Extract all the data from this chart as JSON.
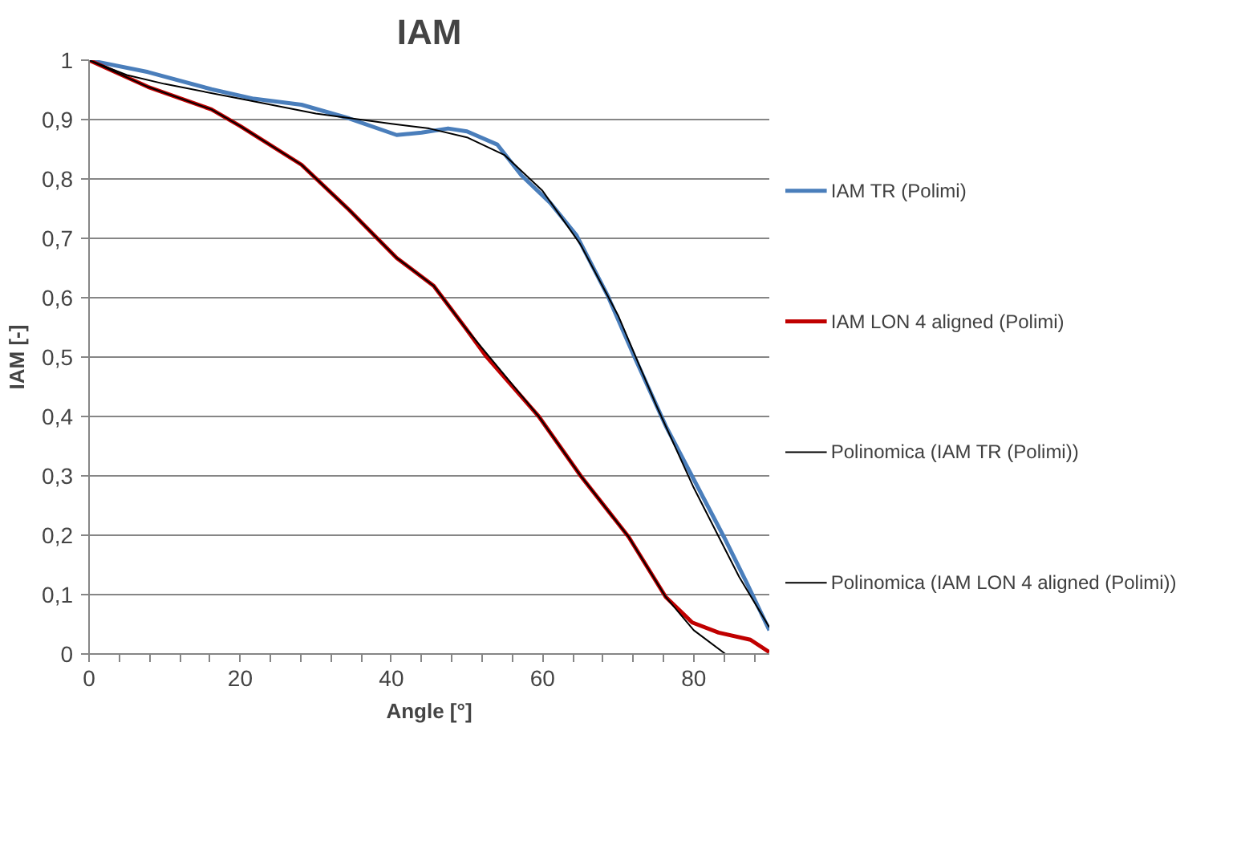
{
  "chart_data": {
    "type": "line",
    "title": "IAM",
    "xlabel": "Angle [°]",
    "ylabel": "IAM [-]",
    "xlim": [
      0,
      90
    ],
    "xticks": [
      0,
      20,
      40,
      60,
      80
    ],
    "ylim": [
      0,
      1
    ],
    "yticks": [
      0,
      {
        "value": 0.1,
        "label": "0,1"
      },
      {
        "value": 0.2,
        "label": "0,2"
      },
      {
        "value": 0.3,
        "label": "0,3"
      },
      {
        "value": 0.4,
        "label": "0,4"
      },
      {
        "value": 0.5,
        "label": "0,5"
      },
      {
        "value": 0.6,
        "label": "0,6"
      },
      {
        "value": 0.7,
        "label": "0,7"
      },
      {
        "value": 0.8,
        "label": "0,8"
      },
      {
        "value": 0.9,
        "label": "0,9"
      },
      1
    ],
    "grid": "y",
    "legend": "right",
    "marker": "none",
    "line_style": "solid",
    "series": [
      {
        "name": "IAM TR (Polimi)",
        "color": "#4a7ebb",
        "x": [
          0,
          7.8,
          16.2,
          21.8,
          28.1,
          34.4,
          40.7,
          44,
          47.5,
          50,
          54,
          57.2,
          61,
          64.5,
          68.6,
          72.1,
          76.3,
          79.8,
          84,
          87,
          90
        ],
        "values": [
          1,
          0.98,
          0.951,
          0.935,
          0.925,
          0.902,
          0.874,
          0.878,
          0.885,
          0.88,
          0.858,
          0.806,
          0.76,
          0.705,
          0.604,
          0.502,
          0.384,
          0.299,
          0.197,
          0.12,
          0.04
        ]
      },
      {
        "name": "IAM LON 4 aligned (Polimi)",
        "color": "#c00000",
        "x": [
          0,
          7.8,
          16.2,
          20,
          28.1,
          34.4,
          40.7,
          45.6,
          49.8,
          52.5,
          59.5,
          65.1,
          71.4,
          76.3,
          79.8,
          83.3,
          87.5,
          90
        ],
        "values": [
          1,
          0.955,
          0.917,
          0.889,
          0.824,
          0.748,
          0.667,
          0.62,
          0.549,
          0.502,
          0.4,
          0.299,
          0.197,
          0.096,
          0.053,
          0.036,
          0.024,
          0.003
        ]
      },
      {
        "name": "Polinomica (IAM TR (Polimi))",
        "color": "#000000",
        "x": [
          0,
          5,
          10,
          20,
          30,
          40,
          45,
          50,
          55,
          60,
          65,
          70,
          75,
          80,
          86,
          90
        ],
        "values": [
          1,
          0.975,
          0.96,
          0.935,
          0.91,
          0.893,
          0.885,
          0.87,
          0.84,
          0.78,
          0.69,
          0.57,
          0.42,
          0.28,
          0.13,
          0.045
        ]
      },
      {
        "name": "Polinomica (IAM LON 4 aligned (Polimi))",
        "color": "#000000",
        "x": [
          0,
          7.8,
          16.2,
          20,
          28.1,
          34.4,
          40.7,
          45.6,
          49.8,
          59.5,
          65.1,
          71.4,
          76.3,
          80,
          84.2
        ],
        "values": [
          1,
          0.955,
          0.917,
          0.889,
          0.824,
          0.748,
          0.667,
          0.62,
          0.549,
          0.4,
          0.299,
          0.197,
          0.096,
          0.04,
          0
        ]
      }
    ]
  }
}
